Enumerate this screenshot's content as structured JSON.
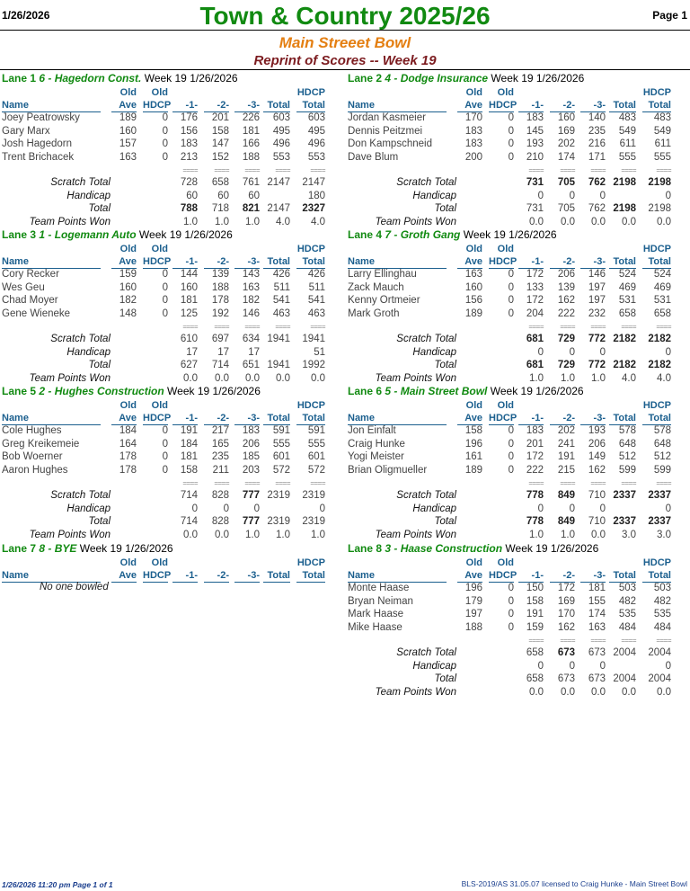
{
  "header": {
    "date": "1/26/2026",
    "title": "Town & Country 2025/26",
    "page": "Page 1",
    "center": "Main Streeet Bowl",
    "subtitle": "Reprint of Scores -- Week 19"
  },
  "col_headers": {
    "old1": "Old",
    "ave": "Ave",
    "old2": "Old",
    "hdcp": "HDCP",
    "name": "Name",
    "g1": "-1-",
    "g2": "-2-",
    "g3": "-3-",
    "total": "Total",
    "hdcp1": "HDCP",
    "hdcp_total": "Total"
  },
  "sum_labels": {
    "scratch": "Scratch Total",
    "handicap": "Handicap",
    "total": "Total",
    "points": "Team Points Won",
    "eq": "===="
  },
  "lanes": [
    {
      "lane": "Lane 1",
      "team": "6 - Hagedorn Const.",
      "week": "Week 19  1/26/2026",
      "bowlers": [
        {
          "name": "Joey Peatrowsky",
          "ave": "189",
          "hdcp": "0",
          "g1": "176",
          "g2": "201",
          "g3": "226",
          "total": "603",
          "htotal": "603"
        },
        {
          "name": "Gary Marx",
          "ave": "160",
          "hdcp": "0",
          "g1": "156",
          "g2": "158",
          "g3": "181",
          "total": "495",
          "htotal": "495"
        },
        {
          "name": "Josh Hagedorn",
          "ave": "157",
          "hdcp": "0",
          "g1": "183",
          "g2": "147",
          "g3": "166",
          "total": "496",
          "htotal": "496"
        },
        {
          "name": "Trent Brichacek",
          "ave": "163",
          "hdcp": "0",
          "g1": "213",
          "g2": "152",
          "g3": "188",
          "total": "553",
          "htotal": "553"
        }
      ],
      "scratch": {
        "g1": "728",
        "g2": "658",
        "g3": "761",
        "total": "2147",
        "htotal": "2147"
      },
      "handicap": {
        "g1": "60",
        "g2": "60",
        "g3": "60",
        "total": "",
        "htotal": "180"
      },
      "total": {
        "g1": "788",
        "g2": "718",
        "g3": "821",
        "total": "2147",
        "htotal": "2327"
      },
      "points": {
        "g1": "1.0",
        "g2": "1.0",
        "g3": "1.0",
        "total": "4.0",
        "htotal": "4.0"
      },
      "bold": {
        "total": [
          "g1",
          "g3",
          "htotal"
        ]
      }
    },
    {
      "lane": "Lane 2",
      "team": "4 - Dodge Insurance",
      "week": "Week 19  1/26/2026",
      "bowlers": [
        {
          "name": "Jordan Kasmeier",
          "ave": "170",
          "hdcp": "0",
          "g1": "183",
          "g2": "160",
          "g3": "140",
          "total": "483",
          "htotal": "483"
        },
        {
          "name": "Dennis Peitzmei",
          "ave": "183",
          "hdcp": "0",
          "g1": "145",
          "g2": "169",
          "g3": "235",
          "total": "549",
          "htotal": "549"
        },
        {
          "name": "Don Kampschneid",
          "ave": "183",
          "hdcp": "0",
          "g1": "193",
          "g2": "202",
          "g3": "216",
          "total": "611",
          "htotal": "611"
        },
        {
          "name": "Dave Blum",
          "ave": "200",
          "hdcp": "0",
          "g1": "210",
          "g2": "174",
          "g3": "171",
          "total": "555",
          "htotal": "555"
        }
      ],
      "scratch": {
        "g1": "731",
        "g2": "705",
        "g3": "762",
        "total": "2198",
        "htotal": "2198"
      },
      "handicap": {
        "g1": "0",
        "g2": "0",
        "g3": "0",
        "total": "",
        "htotal": "0"
      },
      "total": {
        "g1": "731",
        "g2": "705",
        "g3": "762",
        "total": "2198",
        "htotal": "2198"
      },
      "points": {
        "g1": "0.0",
        "g2": "0.0",
        "g3": "0.0",
        "total": "0.0",
        "htotal": "0.0"
      },
      "bold": {
        "scratch": [
          "g1",
          "g2",
          "g3",
          "total",
          "htotal"
        ],
        "total": [
          "total"
        ]
      }
    },
    {
      "lane": "Lane 3",
      "team": "1 - Logemann Auto",
      "week": "Week 19  1/26/2026",
      "bowlers": [
        {
          "name": "Cory Recker",
          "ave": "159",
          "hdcp": "0",
          "g1": "144",
          "g2": "139",
          "g3": "143",
          "total": "426",
          "htotal": "426"
        },
        {
          "name": "Wes Geu",
          "ave": "160",
          "hdcp": "0",
          "g1": "160",
          "g2": "188",
          "g3": "163",
          "total": "511",
          "htotal": "511"
        },
        {
          "name": "Chad Moyer",
          "ave": "182",
          "hdcp": "0",
          "g1": "181",
          "g2": "178",
          "g3": "182",
          "total": "541",
          "htotal": "541"
        },
        {
          "name": "Gene Wieneke",
          "ave": "148",
          "hdcp": "0",
          "g1": "125",
          "g2": "192",
          "g3": "146",
          "total": "463",
          "htotal": "463"
        }
      ],
      "scratch": {
        "g1": "610",
        "g2": "697",
        "g3": "634",
        "total": "1941",
        "htotal": "1941"
      },
      "handicap": {
        "g1": "17",
        "g2": "17",
        "g3": "17",
        "total": "",
        "htotal": "51"
      },
      "total": {
        "g1": "627",
        "g2": "714",
        "g3": "651",
        "total": "1941",
        "htotal": "1992"
      },
      "points": {
        "g1": "0.0",
        "g2": "0.0",
        "g3": "0.0",
        "total": "0.0",
        "htotal": "0.0"
      },
      "bold": {}
    },
    {
      "lane": "Lane 4",
      "team": "7 - Groth Gang",
      "week": "Week 19  1/26/2026",
      "bowlers": [
        {
          "name": "Larry Ellinghau",
          "ave": "163",
          "hdcp": "0",
          "g1": "172",
          "g2": "206",
          "g3": "146",
          "total": "524",
          "htotal": "524"
        },
        {
          "name": "Zack Mauch",
          "ave": "160",
          "hdcp": "0",
          "g1": "133",
          "g2": "139",
          "g3": "197",
          "total": "469",
          "htotal": "469"
        },
        {
          "name": "Kenny Ortmeier",
          "ave": "156",
          "hdcp": "0",
          "g1": "172",
          "g2": "162",
          "g3": "197",
          "total": "531",
          "htotal": "531"
        },
        {
          "name": "Mark Groth",
          "ave": "189",
          "hdcp": "0",
          "g1": "204",
          "g2": "222",
          "g3": "232",
          "total": "658",
          "htotal": "658"
        }
      ],
      "scratch": {
        "g1": "681",
        "g2": "729",
        "g3": "772",
        "total": "2182",
        "htotal": "2182"
      },
      "handicap": {
        "g1": "0",
        "g2": "0",
        "g3": "0",
        "total": "",
        "htotal": "0"
      },
      "total": {
        "g1": "681",
        "g2": "729",
        "g3": "772",
        "total": "2182",
        "htotal": "2182"
      },
      "points": {
        "g1": "1.0",
        "g2": "1.0",
        "g3": "1.0",
        "total": "4.0",
        "htotal": "4.0"
      },
      "bold": {
        "scratch": [
          "g1",
          "g2",
          "g3",
          "total",
          "htotal"
        ],
        "total": [
          "g1",
          "g2",
          "g3",
          "total",
          "htotal"
        ]
      }
    },
    {
      "lane": "Lane 5",
      "team": "2 - Hughes Construction",
      "week": "Week 19  1/26/2026",
      "bowlers": [
        {
          "name": "Cole Hughes",
          "ave": "184",
          "hdcp": "0",
          "g1": "191",
          "g2": "217",
          "g3": "183",
          "total": "591",
          "htotal": "591"
        },
        {
          "name": "Greg Kreikemeie",
          "ave": "164",
          "hdcp": "0",
          "g1": "184",
          "g2": "165",
          "g3": "206",
          "total": "555",
          "htotal": "555"
        },
        {
          "name": "Bob Woerner",
          "ave": "178",
          "hdcp": "0",
          "g1": "181",
          "g2": "235",
          "g3": "185",
          "total": "601",
          "htotal": "601"
        },
        {
          "name": "Aaron Hughes",
          "ave": "178",
          "hdcp": "0",
          "g1": "158",
          "g2": "211",
          "g3": "203",
          "total": "572",
          "htotal": "572"
        }
      ],
      "scratch": {
        "g1": "714",
        "g2": "828",
        "g3": "777",
        "total": "2319",
        "htotal": "2319"
      },
      "handicap": {
        "g1": "0",
        "g2": "0",
        "g3": "0",
        "total": "",
        "htotal": "0"
      },
      "total": {
        "g1": "714",
        "g2": "828",
        "g3": "777",
        "total": "2319",
        "htotal": "2319"
      },
      "points": {
        "g1": "0.0",
        "g2": "0.0",
        "g3": "1.0",
        "total": "1.0",
        "htotal": "1.0"
      },
      "bold": {
        "scratch": [
          "g3"
        ],
        "total": [
          "g3"
        ]
      }
    },
    {
      "lane": "Lane 6",
      "team": "5 - Main Street Bowl",
      "week": "Week 19  1/26/2026",
      "bowlers": [
        {
          "name": "Jon Einfalt",
          "ave": "158",
          "hdcp": "0",
          "g1": "183",
          "g2": "202",
          "g3": "193",
          "total": "578",
          "htotal": "578"
        },
        {
          "name": "Craig Hunke",
          "ave": "196",
          "hdcp": "0",
          "g1": "201",
          "g2": "241",
          "g3": "206",
          "total": "648",
          "htotal": "648"
        },
        {
          "name": "Yogi Meister",
          "ave": "161",
          "hdcp": "0",
          "g1": "172",
          "g2": "191",
          "g3": "149",
          "total": "512",
          "htotal": "512"
        },
        {
          "name": "Brian Oligmueller",
          "ave": "189",
          "hdcp": "0",
          "g1": "222",
          "g2": "215",
          "g3": "162",
          "total": "599",
          "htotal": "599"
        }
      ],
      "scratch": {
        "g1": "778",
        "g2": "849",
        "g3": "710",
        "total": "2337",
        "htotal": "2337"
      },
      "handicap": {
        "g1": "0",
        "g2": "0",
        "g3": "0",
        "total": "",
        "htotal": "0"
      },
      "total": {
        "g1": "778",
        "g2": "849",
        "g3": "710",
        "total": "2337",
        "htotal": "2337"
      },
      "points": {
        "g1": "1.0",
        "g2": "1.0",
        "g3": "0.0",
        "total": "3.0",
        "htotal": "3.0"
      },
      "bold": {
        "scratch": [
          "g1",
          "g2",
          "total",
          "htotal"
        ],
        "total": [
          "g1",
          "g2",
          "total",
          "htotal"
        ]
      }
    },
    {
      "lane": "Lane 7",
      "team": "8 - BYE",
      "week": "Week 19  1/26/2026",
      "bowlers": [],
      "no_bowlers": "No one bowled"
    },
    {
      "lane": "Lane 8",
      "team": "3 - Haase Construction",
      "week": "Week 19  1/26/2026",
      "bowlers": [
        {
          "name": "Monte Haase",
          "ave": "196",
          "hdcp": "0",
          "g1": "150",
          "g2": "172",
          "g3": "181",
          "total": "503",
          "htotal": "503"
        },
        {
          "name": "Bryan Neiman",
          "ave": "179",
          "hdcp": "0",
          "g1": "158",
          "g2": "169",
          "g3": "155",
          "total": "482",
          "htotal": "482"
        },
        {
          "name": "Mark Haase",
          "ave": "197",
          "hdcp": "0",
          "g1": "191",
          "g2": "170",
          "g3": "174",
          "total": "535",
          "htotal": "535"
        },
        {
          "name": "Mike Haase",
          "ave": "188",
          "hdcp": "0",
          "g1": "159",
          "g2": "162",
          "g3": "163",
          "total": "484",
          "htotal": "484"
        }
      ],
      "scratch": {
        "g1": "658",
        "g2": "673",
        "g3": "673",
        "total": "2004",
        "htotal": "2004"
      },
      "handicap": {
        "g1": "0",
        "g2": "0",
        "g3": "0",
        "total": "",
        "htotal": "0"
      },
      "total": {
        "g1": "658",
        "g2": "673",
        "g3": "673",
        "total": "2004",
        "htotal": "2004"
      },
      "points": {
        "g1": "0.0",
        "g2": "0.0",
        "g3": "0.0",
        "total": "0.0",
        "htotal": "0.0"
      },
      "bold": {
        "scratch": [
          "g2"
        ]
      }
    }
  ],
  "footer": {
    "left": "1/26/2026  11:20 pm  Page 1 of 1",
    "right": "BLS-2019/AS 31.05.07 licensed to Craig Hunke - Main Street Bowl"
  }
}
